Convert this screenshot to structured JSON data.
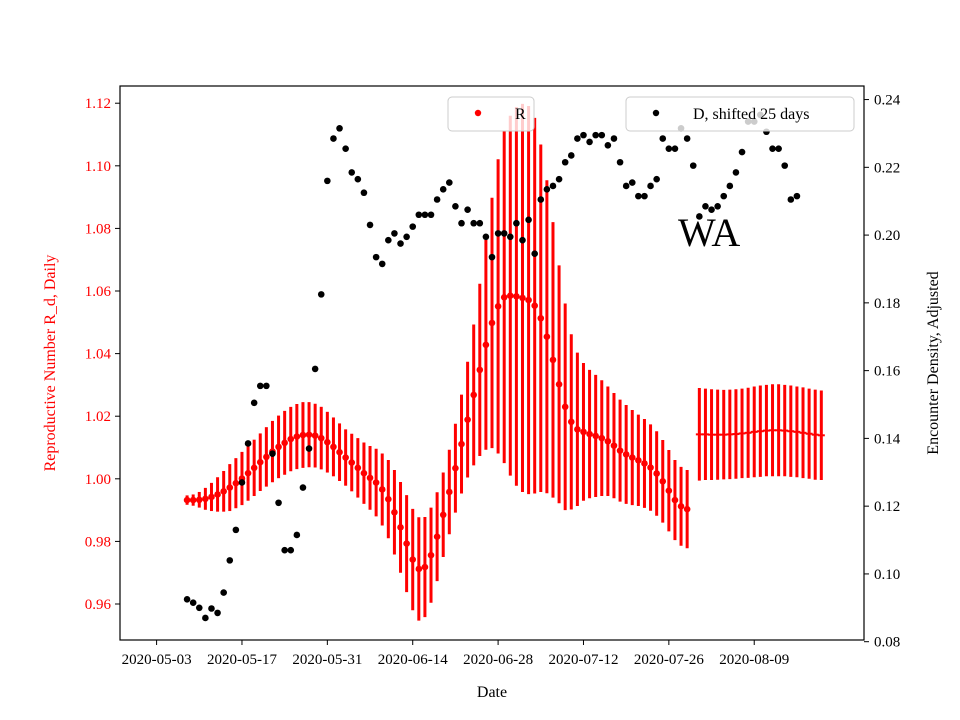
{
  "chart_data": {
    "type": "scatter",
    "xlabel": "Date",
    "ylabel_left": "Reproductive Number R_d, Daily",
    "ylabel_right": "Encounter Density, Adjusted",
    "annotation": "WA",
    "x_ticks": [
      "2020-05-03",
      "2020-05-17",
      "2020-05-31",
      "2020-06-14",
      "2020-06-28",
      "2020-07-12",
      "2020-07-26",
      "2020-08-09"
    ],
    "x_range": [
      "2020-04-27",
      "2020-08-27"
    ],
    "y_left_ticks": [
      "0.96",
      "0.98",
      "1.00",
      "1.02",
      "1.04",
      "1.06",
      "1.08",
      "1.10",
      "1.12"
    ],
    "y_left_range": [
      0.9485,
      1.1255
    ],
    "y_right_ticks": [
      "0.08",
      "0.10",
      "0.12",
      "0.14",
      "0.16",
      "0.18",
      "0.20",
      "0.22",
      "0.24"
    ],
    "y_right_range": [
      0.0805,
      0.244
    ],
    "colors": {
      "R": "#ff0000",
      "D": "#000000",
      "left_axis_text": "#ff0000"
    },
    "series": [
      {
        "name": "R",
        "axis": "left",
        "x_start": "2020-05-08",
        "step_days": 1,
        "y": [
          0.9932,
          0.9932,
          0.9933,
          0.9936,
          0.9942,
          0.995,
          0.996,
          0.9972,
          0.9986,
          1.0001,
          1.0018,
          1.0035,
          1.0053,
          1.007,
          1.0087,
          1.0102,
          1.0115,
          1.0127,
          1.0135,
          1.014,
          1.0141,
          1.0138,
          1.013,
          1.0117,
          1.0102,
          1.0085,
          1.0068,
          1.0052,
          1.0035,
          1.0018,
          1.0003,
          0.9988,
          0.9966,
          0.9935,
          0.9893,
          0.9845,
          0.9793,
          0.9742,
          0.9712,
          0.9718,
          0.9756,
          0.9815,
          0.9885,
          0.9958,
          1.0034,
          1.0111,
          1.0189,
          1.0268,
          1.0348,
          1.0428,
          1.0498,
          1.0551,
          1.058,
          1.0585,
          1.0583,
          1.0578,
          1.0571,
          1.0553,
          1.0513,
          1.0454,
          1.038,
          1.0302,
          1.023,
          1.0182,
          1.0158,
          1.015,
          1.0143,
          1.0137,
          1.013,
          1.012,
          1.0106,
          1.009,
          1.0078,
          1.0068,
          1.0059,
          1.0049,
          1.0036,
          1.0017,
          0.9992,
          0.9962,
          0.9932,
          0.9912,
          0.9903
        ],
        "err": [
          0.0015,
          0.0018,
          0.0025,
          0.0035,
          0.0045,
          0.0055,
          0.0065,
          0.0075,
          0.008,
          0.0085,
          0.0088,
          0.009,
          0.0092,
          0.0095,
          0.0098,
          0.01,
          0.0102,
          0.0103,
          0.0104,
          0.0105,
          0.0104,
          0.0102,
          0.01,
          0.0097,
          0.0094,
          0.0092,
          0.009,
          0.0092,
          0.0095,
          0.0098,
          0.0102,
          0.0108,
          0.0115,
          0.0125,
          0.0135,
          0.0145,
          0.0155,
          0.0162,
          0.0165,
          0.016,
          0.0152,
          0.0142,
          0.0135,
          0.0135,
          0.0142,
          0.0158,
          0.0185,
          0.0225,
          0.0275,
          0.0335,
          0.04,
          0.047,
          0.053,
          0.0575,
          0.0605,
          0.062,
          0.062,
          0.06,
          0.0555,
          0.05,
          0.044,
          0.038,
          0.033,
          0.028,
          0.0245,
          0.022,
          0.0205,
          0.0195,
          0.0185,
          0.0175,
          0.0168,
          0.0163,
          0.0158,
          0.0152,
          0.0146,
          0.0142,
          0.0138,
          0.0135,
          0.0132,
          0.013,
          0.0128,
          0.0126,
          0.0125
        ]
      },
      {
        "name": "R",
        "axis": "left",
        "note_projection": true,
        "x_start": "2020-07-31",
        "step_days": 1,
        "y": [
          1.0142,
          1.0142,
          1.0141,
          1.0141,
          1.0141,
          1.0142,
          1.0143,
          1.0145,
          1.0147,
          1.015,
          1.0152,
          1.0154,
          1.0155,
          1.0155,
          1.0154,
          1.0152,
          1.015,
          1.0147,
          1.0144,
          1.0141,
          1.0139
        ],
        "err": [
          0.0148,
          0.0146,
          0.0145,
          0.0144,
          0.0143,
          0.0143,
          0.0143,
          0.0143,
          0.0144,
          0.0145,
          0.0146,
          0.0146,
          0.0147,
          0.0147,
          0.0146,
          0.0146,
          0.0145,
          0.0145,
          0.0144,
          0.0144,
          0.0143
        ]
      },
      {
        "name": "D, shifted 25 days",
        "axis": "right",
        "x_start": "2020-05-08",
        "step_days": 1,
        "y": [
          0.0925,
          0.0915,
          0.09,
          0.087,
          0.0898,
          0.0885,
          0.0945,
          0.104,
          0.113,
          0.127,
          0.1385,
          0.1505,
          0.1555,
          0.1555,
          0.1355,
          0.121,
          0.107,
          0.107,
          0.1115,
          0.1255,
          0.137,
          0.1605,
          0.1825,
          0.216,
          0.2285,
          0.2315,
          0.2255,
          0.2185,
          0.2165,
          0.2125,
          0.203,
          0.1935,
          0.1915,
          0.1985,
          0.2005,
          0.1975,
          0.1995,
          0.2025,
          0.206,
          0.206,
          0.206,
          0.2105,
          0.2135,
          0.2155,
          0.2085,
          0.2035,
          0.2075,
          0.2035,
          0.2035,
          0.1995,
          0.1935,
          0.2005,
          0.2005,
          0.1995,
          0.2035,
          0.1985,
          0.2045,
          0.1945,
          0.2105,
          0.2135,
          0.2145,
          0.2165,
          0.2215,
          0.2235,
          0.2285,
          0.2295,
          0.2275,
          0.2295,
          0.2295,
          0.2265,
          0.2285,
          0.2215,
          0.2145,
          0.2155,
          0.2115,
          0.2115,
          0.2145,
          0.2165,
          0.2285,
          0.2255,
          0.2255,
          0.2315,
          0.2285,
          0.2205,
          0.2055,
          0.2085,
          0.2075,
          0.2085,
          0.2115,
          0.2145,
          0.2185,
          0.2245,
          0.2335,
          0.2335,
          0.2355,
          0.2305,
          0.2255,
          0.2255,
          0.2205,
          0.2105,
          0.2115
        ]
      }
    ],
    "legend": [
      {
        "label": "R",
        "position": "top-center"
      },
      {
        "label": "D, shifted 25 days",
        "position": "top-right"
      }
    ]
  }
}
